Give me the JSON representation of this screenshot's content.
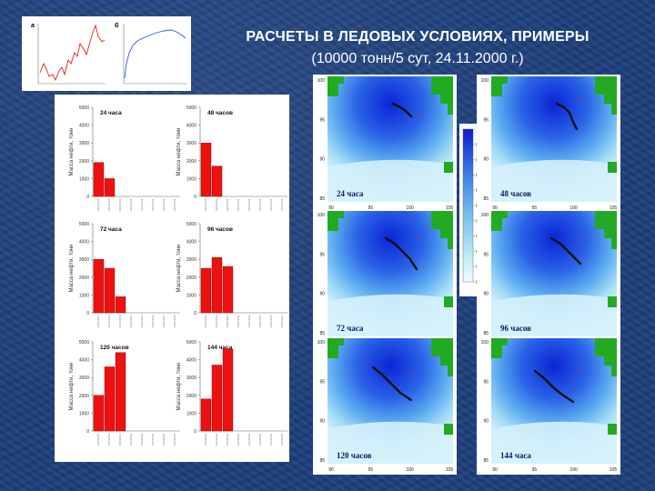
{
  "slide": {
    "title": "РАСЧЕТЫ В ЛЕДОВЫХ УСЛОВИЯХ, ПРИМЕРЫ",
    "subtitle": "(10000 тонн/5 сут, 24.11.2000 г.)"
  },
  "colors": {
    "background": "#1d3f7c",
    "bar": "#ee1111",
    "deep_blue": "#1133dd",
    "land": "#22aa22",
    "slick": "#111111",
    "marker": "#dd2222"
  },
  "mini_charts": {
    "a": {
      "label": "а",
      "color": "#dd2222"
    },
    "b": {
      "label": "б",
      "color": "#3355dd"
    }
  },
  "bar_charts": {
    "ylabel": "Масса нефти, тонн",
    "ytick_labels": [
      "0",
      "1000",
      "2000",
      "3000",
      "4000",
      "5000"
    ],
    "ylim": [
      0,
      5000
    ],
    "category_count": 8,
    "panels": [
      {
        "label": "24 часа",
        "values": [
          1900,
          1000,
          0,
          0,
          0,
          0,
          0,
          0
        ]
      },
      {
        "label": "48 часов",
        "values": [
          3000,
          1700,
          0,
          0,
          0,
          0,
          0,
          0
        ]
      },
      {
        "label": "72 часа",
        "values": [
          3000,
          2500,
          900,
          0,
          0,
          0,
          0,
          0
        ]
      },
      {
        "label": "96 часов",
        "values": [
          2500,
          3100,
          2600,
          0,
          0,
          0,
          0,
          0
        ]
      },
      {
        "label": "120 часов",
        "values": [
          2000,
          3600,
          4400,
          0,
          0,
          0,
          0,
          0
        ]
      },
      {
        "label": "144 часа",
        "values": [
          1800,
          3700,
          4600,
          0,
          0,
          0,
          0,
          0
        ]
      }
    ]
  },
  "maps": {
    "x_ticks": [
      "90",
      "95",
      "100",
      "105"
    ],
    "y_ticks": [
      "85",
      "90",
      "95",
      "100"
    ],
    "panels": [
      {
        "label": "24 часа"
      },
      {
        "label": "48 часов"
      },
      {
        "label": "72 часа"
      },
      {
        "label": "96 часов"
      },
      {
        "label": "120 часов"
      },
      {
        "label": "144 часа"
      }
    ],
    "colorbar_ticks": [
      "1",
      "0.9",
      "0.8",
      "0.7",
      "0.6",
      "0.5",
      "0.4",
      "0.3",
      "0.2",
      "0.1",
      "0.05"
    ]
  }
}
